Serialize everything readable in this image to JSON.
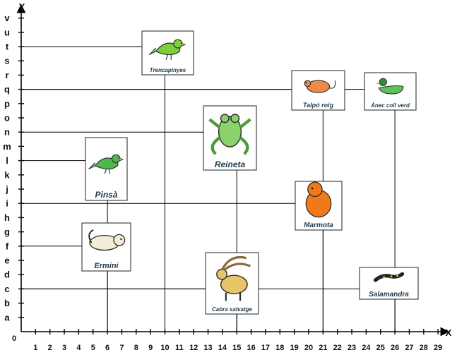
{
  "axes": {
    "y_label": "Y",
    "x_label": "X",
    "origin_label": "0",
    "y_ticks": [
      "a",
      "b",
      "c",
      "d",
      "e",
      "f",
      "g",
      "h",
      "i",
      "j",
      "k",
      "l",
      "m",
      "n",
      "o",
      "p",
      "q",
      "r",
      "s",
      "t",
      "u",
      "v"
    ],
    "x_ticks": [
      "1",
      "2",
      "3",
      "4",
      "5",
      "6",
      "7",
      "8",
      "9",
      "10",
      "11",
      "12",
      "13",
      "14",
      "15",
      "16",
      "17",
      "18",
      "19",
      "20",
      "21",
      "22",
      "23",
      "24",
      "25",
      "26",
      "27",
      "28",
      "29"
    ]
  },
  "animals": [
    {
      "id": "trencapinyes",
      "label": "Trencapinyes",
      "x": 10,
      "y": "t",
      "icon": "bird-icon",
      "color": "#7ccf3a"
    },
    {
      "id": "talpo-roig",
      "label": "Talpó roig",
      "x": 21,
      "y": "q",
      "icon": "rodent-icon",
      "color": "#f08a4a"
    },
    {
      "id": "anec-coll-verd",
      "label": "Ànec coll verd",
      "x": 26,
      "y": "q",
      "icon": "duck-icon",
      "color": "#5cc15a"
    },
    {
      "id": "reineta",
      "label": "Reineta",
      "x": 15,
      "y": "n",
      "icon": "frog-icon",
      "color": "#8ad26a"
    },
    {
      "id": "pinsa",
      "label": "Pinsà",
      "x": 6,
      "y": "l",
      "icon": "bird-icon",
      "color": "#4fb84a"
    },
    {
      "id": "marmota",
      "label": "Marmota",
      "x": 21,
      "y": "i",
      "icon": "marmot-icon",
      "color": "#f07a1a"
    },
    {
      "id": "ermini",
      "label": "Ermini",
      "x": 6,
      "y": "f",
      "icon": "weasel-icon",
      "color": "#f3ecd6"
    },
    {
      "id": "cabra-salvatge",
      "label": "Cabra salvatge",
      "x": 15,
      "y": "c",
      "icon": "goat-icon",
      "color": "#e6c66a"
    },
    {
      "id": "salamandra",
      "label": "Salamandra",
      "x": 26,
      "y": "c",
      "icon": "salamander-icon",
      "color": "#222222"
    }
  ]
}
